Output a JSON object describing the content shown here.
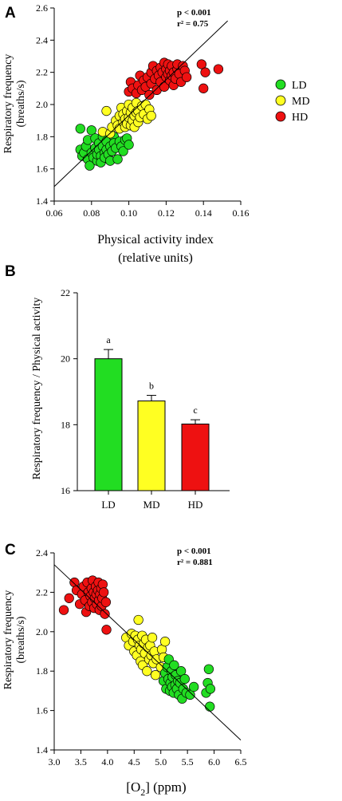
{
  "colors": {
    "LD": "#22dd22",
    "MD": "#ffff22",
    "HD": "#ee1111",
    "line": "#000000"
  },
  "chart_data": [
    {
      "panel": "A",
      "type": "scatter",
      "xlabel": "Physical activity index",
      "xlabel2": "(relative units)",
      "ylabel": "Respiratory frequency",
      "ylabel2": "(breaths/s)",
      "xlim": [
        0.06,
        0.16
      ],
      "ylim": [
        1.4,
        2.6
      ],
      "xticks": [
        "0.06",
        "0.08",
        "0.10",
        "0.12",
        "0.14",
        "0.16"
      ],
      "yticks": [
        "1.4",
        "1.6",
        "1.8",
        "2.0",
        "2.2",
        "2.4",
        "2.6"
      ],
      "grid": false,
      "annotation": [
        "p < 0.001",
        "r² = 0.75"
      ],
      "legend": {
        "placement": "right",
        "entries": [
          "LD",
          "MD",
          "HD"
        ]
      },
      "fit_line": {
        "x": [
          0.06,
          0.153
        ],
        "y": [
          1.49,
          2.52
        ]
      },
      "series": [
        {
          "name": "LD",
          "color_key": "LD",
          "points": [
            [
              0.074,
              1.85
            ],
            [
              0.074,
              1.72
            ],
            [
              0.075,
              1.68
            ],
            [
              0.076,
              1.7
            ],
            [
              0.077,
              1.74
            ],
            [
              0.078,
              1.66
            ],
            [
              0.078,
              1.78
            ],
            [
              0.079,
              1.62
            ],
            [
              0.08,
              1.84
            ],
            [
              0.08,
              1.7
            ],
            [
              0.081,
              1.67
            ],
            [
              0.082,
              1.73
            ],
            [
              0.082,
              1.79
            ],
            [
              0.083,
              1.65
            ],
            [
              0.083,
              1.69
            ],
            [
              0.084,
              1.76
            ],
            [
              0.084,
              1.72
            ],
            [
              0.085,
              1.68
            ],
            [
              0.085,
              1.64
            ],
            [
              0.086,
              1.74
            ],
            [
              0.086,
              1.8
            ],
            [
              0.087,
              1.7
            ],
            [
              0.087,
              1.67
            ],
            [
              0.088,
              1.72
            ],
            [
              0.088,
              1.77
            ],
            [
              0.089,
              1.69
            ],
            [
              0.09,
              1.74
            ],
            [
              0.09,
              1.65
            ],
            [
              0.091,
              1.71
            ],
            [
              0.092,
              1.8
            ],
            [
              0.092,
              1.76
            ],
            [
              0.093,
              1.73
            ],
            [
              0.094,
              1.66
            ],
            [
              0.095,
              1.77
            ],
            [
              0.096,
              1.74
            ],
            [
              0.097,
              1.71
            ],
            [
              0.098,
              1.78
            ],
            [
              0.099,
              1.79
            ],
            [
              0.1,
              1.75
            ]
          ]
        },
        {
          "name": "MD",
          "color_key": "MD",
          "points": [
            [
              0.086,
              1.83
            ],
            [
              0.088,
              1.96
            ],
            [
              0.09,
              1.82
            ],
            [
              0.091,
              1.86
            ],
            [
              0.093,
              1.9
            ],
            [
              0.094,
              1.87
            ],
            [
              0.095,
              1.93
            ],
            [
              0.095,
              1.85
            ],
            [
              0.096,
              1.98
            ],
            [
              0.097,
              1.89
            ],
            [
              0.097,
              1.94
            ],
            [
              0.098,
              1.91
            ],
            [
              0.098,
              1.86
            ],
            [
              0.099,
              1.96
            ],
            [
              0.099,
              1.88
            ],
            [
              0.1,
              1.92
            ],
            [
              0.1,
              2.0
            ],
            [
              0.101,
              1.95
            ],
            [
              0.101,
              1.87
            ],
            [
              0.102,
              1.9
            ],
            [
              0.102,
              1.98
            ],
            [
              0.103,
              1.93
            ],
            [
              0.103,
              1.86
            ],
            [
              0.104,
              1.95
            ],
            [
              0.104,
              2.01
            ],
            [
              0.105,
              1.89
            ],
            [
              0.105,
              1.96
            ],
            [
              0.106,
              1.92
            ],
            [
              0.107,
              1.99
            ],
            [
              0.108,
              1.94
            ],
            [
              0.109,
              2.0
            ],
            [
              0.11,
              1.91
            ],
            [
              0.111,
              1.97
            ],
            [
              0.112,
              1.93
            ]
          ]
        },
        {
          "name": "HD",
          "color_key": "HD",
          "points": [
            [
              0.1,
              2.08
            ],
            [
              0.101,
              2.14
            ],
            [
              0.102,
              2.1
            ],
            [
              0.104,
              2.07
            ],
            [
              0.105,
              2.12
            ],
            [
              0.106,
              2.18
            ],
            [
              0.107,
              2.09
            ],
            [
              0.108,
              2.15
            ],
            [
              0.109,
              2.11
            ],
            [
              0.11,
              2.17
            ],
            [
              0.111,
              2.06
            ],
            [
              0.112,
              2.2
            ],
            [
              0.112,
              2.13
            ],
            [
              0.113,
              2.24
            ],
            [
              0.114,
              2.16
            ],
            [
              0.115,
              2.21
            ],
            [
              0.115,
              2.09
            ],
            [
              0.116,
              2.18
            ],
            [
              0.117,
              2.23
            ],
            [
              0.117,
              2.14
            ],
            [
              0.118,
              2.2
            ],
            [
              0.119,
              2.26
            ],
            [
              0.119,
              2.11
            ],
            [
              0.12,
              2.17
            ],
            [
              0.12,
              2.22
            ],
            [
              0.121,
              2.19
            ],
            [
              0.121,
              2.25
            ],
            [
              0.122,
              2.15
            ],
            [
              0.122,
              2.21
            ],
            [
              0.123,
              2.18
            ],
            [
              0.123,
              2.24
            ],
            [
              0.124,
              2.12
            ],
            [
              0.124,
              2.2
            ],
            [
              0.125,
              2.16
            ],
            [
              0.126,
              2.22
            ],
            [
              0.126,
              2.25
            ],
            [
              0.127,
              2.19
            ],
            [
              0.128,
              2.14
            ],
            [
              0.129,
              2.24
            ],
            [
              0.13,
              2.21
            ],
            [
              0.131,
              2.17
            ],
            [
              0.139,
              2.25
            ],
            [
              0.14,
              2.1
            ],
            [
              0.141,
              2.2
            ],
            [
              0.148,
              2.22
            ]
          ]
        }
      ]
    },
    {
      "panel": "B",
      "type": "bar",
      "ylabel": "Respiratory frequency / Physical activity",
      "categories": [
        "LD",
        "MD",
        "HD"
      ],
      "values": [
        20.0,
        18.72,
        18.02
      ],
      "errors": [
        0.28,
        0.17,
        0.13
      ],
      "letters": [
        "a",
        "b",
        "c"
      ],
      "bar_colors": [
        "LD",
        "MD",
        "HD"
      ],
      "ylim": [
        16,
        22
      ],
      "yticks": [
        "16",
        "18",
        "20",
        "22"
      ],
      "grid": false
    },
    {
      "panel": "C",
      "type": "scatter",
      "xlabel": "[O2] (ppm)",
      "ylabel": "Respiratory frequency",
      "ylabel2": "(breaths/s)",
      "xlim": [
        3.0,
        6.5
      ],
      "ylim": [
        1.4,
        2.4
      ],
      "xticks": [
        "3.0",
        "3.5",
        "4.0",
        "4.5",
        "5.0",
        "5.5",
        "6.0",
        "6.5"
      ],
      "yticks": [
        "1.4",
        "1.6",
        "1.8",
        "2.0",
        "2.2",
        "2.4"
      ],
      "grid": false,
      "annotation": [
        "p < 0.001",
        "r² = 0.881"
      ],
      "fit_line": {
        "x": [
          3.0,
          6.5
        ],
        "y": [
          2.34,
          1.45
        ]
      },
      "series": [
        {
          "name": "HD",
          "color_key": "HD",
          "points": [
            [
              3.18,
              2.11
            ],
            [
              3.28,
              2.17
            ],
            [
              3.38,
              2.25
            ],
            [
              3.42,
              2.21
            ],
            [
              3.48,
              2.14
            ],
            [
              3.52,
              2.19
            ],
            [
              3.55,
              2.23
            ],
            [
              3.58,
              2.16
            ],
            [
              3.6,
              2.1
            ],
            [
              3.62,
              2.25
            ],
            [
              3.64,
              2.2
            ],
            [
              3.66,
              2.13
            ],
            [
              3.68,
              2.18
            ],
            [
              3.7,
              2.22
            ],
            [
              3.71,
              2.15
            ],
            [
              3.72,
              2.26
            ],
            [
              3.74,
              2.2
            ],
            [
              3.75,
              2.12
            ],
            [
              3.76,
              2.17
            ],
            [
              3.78,
              2.23
            ],
            [
              3.79,
              2.19
            ],
            [
              3.8,
              2.14
            ],
            [
              3.82,
              2.21
            ],
            [
              3.83,
              2.25
            ],
            [
              3.84,
              2.16
            ],
            [
              3.85,
              2.11
            ],
            [
              3.86,
              2.19
            ],
            [
              3.88,
              2.22
            ],
            [
              3.89,
              2.13
            ],
            [
              3.9,
              2.17
            ],
            [
              3.91,
              2.24
            ],
            [
              3.93,
              2.2
            ],
            [
              3.95,
              2.09
            ],
            [
              3.97,
              2.15
            ],
            [
              3.98,
              2.01
            ]
          ]
        },
        {
          "name": "MD",
          "color_key": "MD",
          "points": [
            [
              4.35,
              1.97
            ],
            [
              4.4,
              1.93
            ],
            [
              4.45,
              1.99
            ],
            [
              4.48,
              1.95
            ],
            [
              4.5,
              1.9
            ],
            [
              4.52,
              1.98
            ],
            [
              4.55,
              1.88
            ],
            [
              4.57,
              1.96
            ],
            [
              4.58,
              2.06
            ],
            [
              4.6,
              1.93
            ],
            [
              4.62,
              1.85
            ],
            [
              4.63,
              1.91
            ],
            [
              4.65,
              1.98
            ],
            [
              4.66,
              1.83
            ],
            [
              4.68,
              1.94
            ],
            [
              4.7,
              1.89
            ],
            [
              4.72,
              1.96
            ],
            [
              4.74,
              1.8
            ],
            [
              4.76,
              1.92
            ],
            [
              4.78,
              1.86
            ],
            [
              4.8,
              1.93
            ],
            [
              4.82,
              1.88
            ],
            [
              4.84,
              1.97
            ],
            [
              4.86,
              1.84
            ],
            [
              4.88,
              1.9
            ],
            [
              4.9,
              1.78
            ],
            [
              4.92,
              1.86
            ],
            [
              5.0,
              1.82
            ],
            [
              5.02,
              1.91
            ],
            [
              5.05,
              1.87
            ],
            [
              5.08,
              1.95
            ]
          ]
        },
        {
          "name": "LD",
          "color_key": "LD",
          "points": [
            [
              5.05,
              1.75
            ],
            [
              5.08,
              1.79
            ],
            [
              5.1,
              1.71
            ],
            [
              5.12,
              1.82
            ],
            [
              5.14,
              1.76
            ],
            [
              5.15,
              1.86
            ],
            [
              5.17,
              1.7
            ],
            [
              5.18,
              1.74
            ],
            [
              5.2,
              1.8
            ],
            [
              5.21,
              1.72
            ],
            [
              5.22,
              1.77
            ],
            [
              5.24,
              1.69
            ],
            [
              5.25,
              1.83
            ],
            [
              5.27,
              1.73
            ],
            [
              5.28,
              1.78
            ],
            [
              5.3,
              1.71
            ],
            [
              5.32,
              1.75
            ],
            [
              5.34,
              1.68
            ],
            [
              5.36,
              1.74
            ],
            [
              5.38,
              1.8
            ],
            [
              5.4,
              1.66
            ],
            [
              5.42,
              1.71
            ],
            [
              5.45,
              1.76
            ],
            [
              5.48,
              1.69
            ],
            [
              5.55,
              1.68
            ],
            [
              5.62,
              1.72
            ],
            [
              5.85,
              1.69
            ],
            [
              5.88,
              1.74
            ],
            [
              5.9,
              1.81
            ],
            [
              5.92,
              1.62
            ],
            [
              5.93,
              1.71
            ]
          ]
        }
      ]
    }
  ],
  "panel_labels": [
    "A",
    "B",
    "C"
  ]
}
